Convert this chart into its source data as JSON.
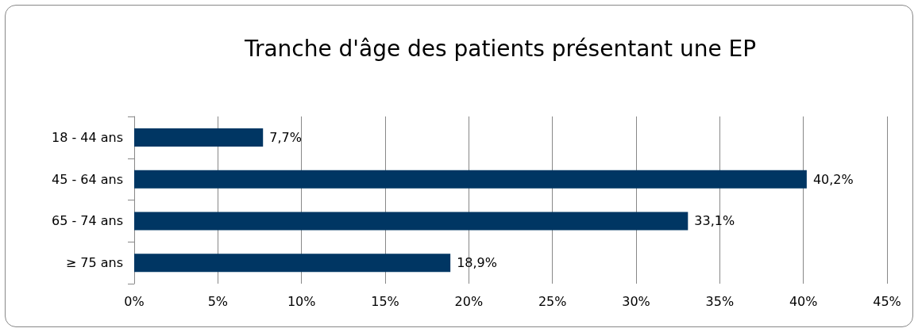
{
  "chart_data": {
    "type": "bar",
    "orientation": "horizontal",
    "title": "Tranche d'âge des patients présentant une EP",
    "categories": [
      "18 - 44 ans",
      "45 - 64 ans",
      "65 - 74 ans",
      "≥ 75 ans"
    ],
    "values": [
      7.7,
      40.2,
      33.1,
      18.9
    ],
    "color": "#003663",
    "value_labels": [
      "7,7%",
      "40,2%",
      "33,1%",
      "18,9%"
    ],
    "xlim": [
      0,
      45
    ],
    "xticks": [
      {
        "value": 0,
        "label": "0%"
      },
      {
        "value": 5,
        "label": "5%"
      },
      {
        "value": 10,
        "label": "10%"
      },
      {
        "value": 15,
        "label": "15%"
      },
      {
        "value": 20,
        "label": "20%"
      },
      {
        "value": 25,
        "label": "25%"
      },
      {
        "value": 30,
        "label": "30%"
      },
      {
        "value": 35,
        "label": "35%"
      },
      {
        "value": 40,
        "label": "40%"
      },
      {
        "value": 45,
        "label": "45%"
      }
    ],
    "grid": "x"
  }
}
